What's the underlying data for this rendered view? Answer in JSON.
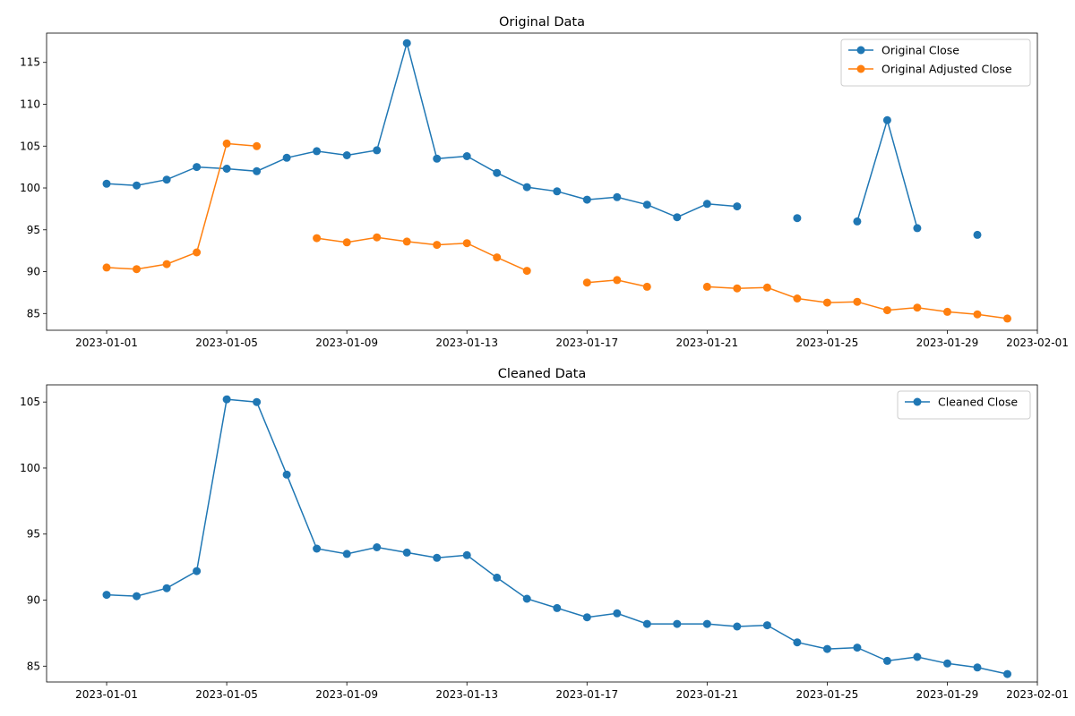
{
  "chart_data": [
    {
      "type": "line",
      "title": "Original Data",
      "xlabel": "",
      "ylabel": "",
      "x_type": "date",
      "xlim": [
        "2022-12-30",
        "2023-02-01"
      ],
      "xticks": [
        "2023-01-01",
        "2023-01-05",
        "2023-01-09",
        "2023-01-13",
        "2023-01-17",
        "2023-01-21",
        "2023-01-25",
        "2023-01-29",
        "2023-02-01"
      ],
      "ylim": [
        83,
        118.5
      ],
      "yticks": [
        85,
        90,
        95,
        100,
        105,
        110,
        115
      ],
      "grid": false,
      "legend_position": "top-right",
      "x": [
        "2023-01-01",
        "2023-01-02",
        "2023-01-03",
        "2023-01-04",
        "2023-01-05",
        "2023-01-06",
        "2023-01-07",
        "2023-01-08",
        "2023-01-09",
        "2023-01-10",
        "2023-01-11",
        "2023-01-12",
        "2023-01-13",
        "2023-01-14",
        "2023-01-15",
        "2023-01-16",
        "2023-01-17",
        "2023-01-18",
        "2023-01-19",
        "2023-01-20",
        "2023-01-21",
        "2023-01-22",
        "2023-01-23",
        "2023-01-24",
        "2023-01-25",
        "2023-01-26",
        "2023-01-27",
        "2023-01-28",
        "2023-01-29",
        "2023-01-30",
        "2023-01-31"
      ],
      "series": [
        {
          "name": "Original Close",
          "color": "#1f77b4",
          "values": [
            100.5,
            100.3,
            101.0,
            102.5,
            102.3,
            102.0,
            103.6,
            104.4,
            103.9,
            104.5,
            117.3,
            103.5,
            103.8,
            101.8,
            100.1,
            99.6,
            98.6,
            98.9,
            98.0,
            96.5,
            98.1,
            97.8,
            null,
            96.4,
            null,
            96.0,
            108.1,
            95.2,
            null,
            94.4,
            null
          ]
        },
        {
          "name": "Original Adjusted Close",
          "color": "#ff7f0e",
          "values": [
            90.5,
            90.3,
            90.9,
            92.3,
            105.3,
            105.0,
            null,
            94.0,
            93.5,
            94.1,
            93.6,
            93.2,
            93.4,
            91.7,
            90.1,
            null,
            88.7,
            89.0,
            88.2,
            null,
            88.2,
            88.0,
            88.1,
            86.8,
            86.3,
            86.4,
            85.4,
            85.7,
            85.2,
            84.9,
            84.4
          ]
        }
      ]
    },
    {
      "type": "line",
      "title": "Cleaned Data",
      "xlabel": "",
      "ylabel": "",
      "x_type": "date",
      "xlim": [
        "2022-12-30",
        "2023-02-01"
      ],
      "xticks": [
        "2023-01-01",
        "2023-01-05",
        "2023-01-09",
        "2023-01-13",
        "2023-01-17",
        "2023-01-21",
        "2023-01-25",
        "2023-01-29",
        "2023-02-01"
      ],
      "ylim": [
        83.8,
        106.3
      ],
      "yticks": [
        85,
        90,
        95,
        100,
        105
      ],
      "grid": false,
      "legend_position": "top-right",
      "x": [
        "2023-01-01",
        "2023-01-02",
        "2023-01-03",
        "2023-01-04",
        "2023-01-05",
        "2023-01-06",
        "2023-01-07",
        "2023-01-08",
        "2023-01-09",
        "2023-01-10",
        "2023-01-11",
        "2023-01-12",
        "2023-01-13",
        "2023-01-14",
        "2023-01-15",
        "2023-01-16",
        "2023-01-17",
        "2023-01-18",
        "2023-01-19",
        "2023-01-20",
        "2023-01-21",
        "2023-01-22",
        "2023-01-23",
        "2023-01-24",
        "2023-01-25",
        "2023-01-26",
        "2023-01-27",
        "2023-01-28",
        "2023-01-29",
        "2023-01-30",
        "2023-01-31"
      ],
      "series": [
        {
          "name": "Cleaned Close",
          "color": "#1f77b4",
          "values": [
            90.4,
            90.3,
            90.9,
            92.2,
            105.2,
            105.0,
            99.5,
            93.9,
            93.5,
            94.0,
            93.6,
            93.2,
            93.4,
            91.7,
            90.1,
            89.4,
            88.7,
            89.0,
            88.2,
            88.2,
            88.2,
            88.0,
            88.1,
            86.8,
            86.3,
            86.4,
            85.4,
            85.7,
            85.2,
            84.9,
            84.4
          ]
        }
      ]
    }
  ]
}
